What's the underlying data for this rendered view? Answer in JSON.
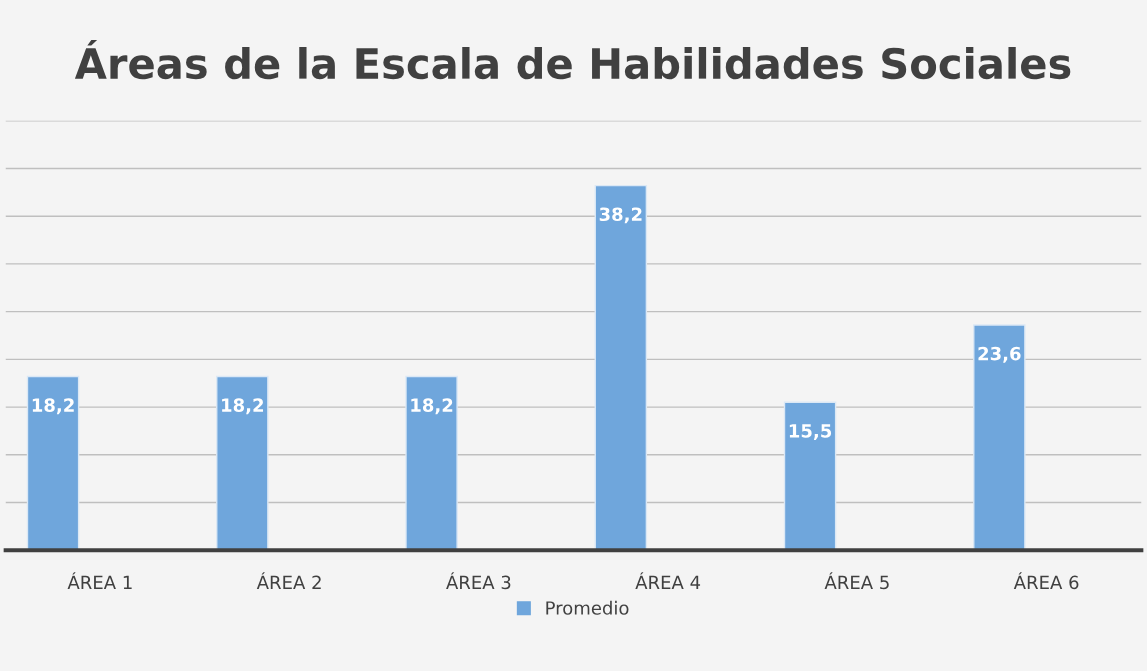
{
  "chart_data": {
    "type": "bar",
    "title": "Áreas de la Escala de Habilidades Sociales",
    "categories": [
      "ÁREA 1",
      "ÁREA 2",
      "ÁREA 3",
      "ÁREA 4",
      "ÁREA 5",
      "ÁREA 6"
    ],
    "series": [
      {
        "name": "Promedio",
        "color": "#6fa6dc",
        "values": [
          18.2,
          18.2,
          18.2,
          38.2,
          15.5,
          23.6
        ],
        "value_labels": [
          "18,2",
          "18,2",
          "18,2",
          "38,2",
          "15,5",
          "23,6"
        ]
      }
    ],
    "ylim": [
      0,
      45
    ],
    "yticks": [
      {
        "value": 0,
        "label": null
      },
      {
        "value": 5,
        "label": null
      },
      {
        "value": 10,
        "label": null
      },
      {
        "value": 15,
        "label": null
      },
      {
        "value": 20,
        "label": null
      },
      {
        "value": 25,
        "label": null
      },
      {
        "value": 30,
        "label": null
      },
      {
        "value": 35,
        "label": null
      },
      {
        "value": 40,
        "label": null
      },
      {
        "value": 45,
        "label": null
      }
    ],
    "grid": "y",
    "legend": "bottom"
  }
}
